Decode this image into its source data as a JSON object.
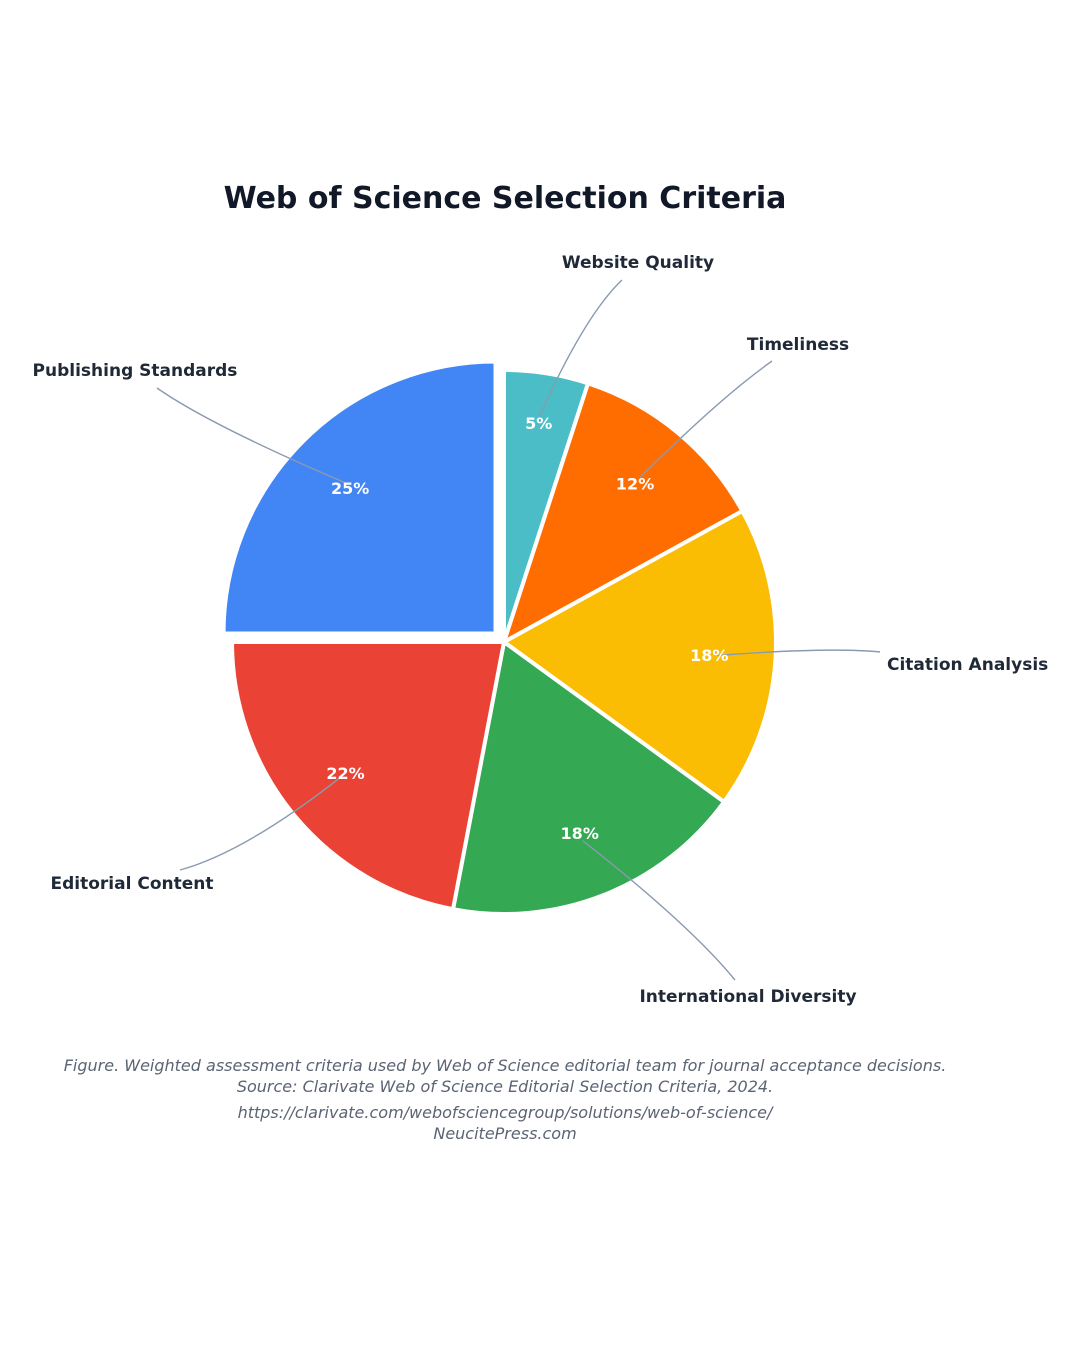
{
  "chart_data": {
    "type": "pie",
    "title": "Web of Science Selection Criteria",
    "slices": [
      {
        "label": "Website Quality",
        "value": 5,
        "value_label": "5%",
        "color": "#4bbdc6"
      },
      {
        "label": "Timeliness",
        "value": 12,
        "value_label": "12%",
        "color": "#ff6d00"
      },
      {
        "label": "Citation Analysis",
        "value": 18,
        "value_label": "18%",
        "color": "#fbbc04"
      },
      {
        "label": "International Diversity",
        "value": 18,
        "value_label": "18%",
        "color": "#34a853"
      },
      {
        "label": "Editorial Content",
        "value": 22,
        "value_label": "22%",
        "color": "#ea4335"
      },
      {
        "label": "Publishing Standards",
        "value": 25,
        "value_label": "25%",
        "color": "#4285f4",
        "exploded": true
      }
    ],
    "legend": "none"
  },
  "caption": {
    "line1": "Figure. Weighted assessment criteria used by Web of Science editorial team for journal acceptance decisions.",
    "line2": "Source: Clarivate Web of Science Editorial Selection Criteria, 2024.",
    "line3": "https://clarivate.com/webofsciencegroup/solutions/web-of-science/",
    "line4": "NeucitePress.com"
  }
}
